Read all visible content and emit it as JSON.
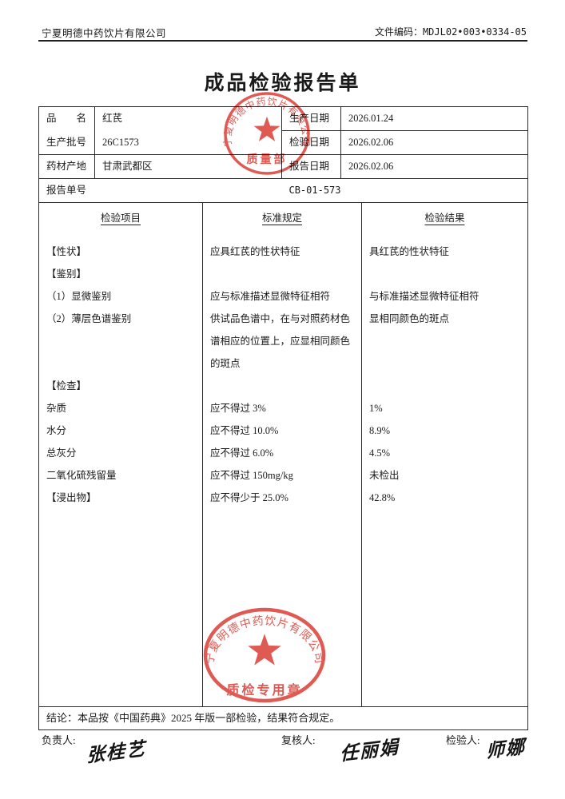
{
  "header": {
    "company": "宁夏明德中药饮片有限公司",
    "doc_code_label": "文件编码：",
    "doc_code_value": "MDJL02•003•0334-05",
    "title": "成品检验报告单"
  },
  "info": {
    "name_label": "品　　名",
    "name_value": "红芪",
    "batch_label": "生产批号",
    "batch_value": "26C1573",
    "origin_label": "药材产地",
    "origin_value": "甘肃武都区",
    "prod_date_label": "生产日期",
    "prod_date_value": "2026.01.24",
    "test_date_label": "检验日期",
    "test_date_value": "2026.02.06",
    "report_date_label": "报告日期",
    "report_date_value": "2026.02.06",
    "report_no_label": "报告单号",
    "report_no_value": "CB-01-573"
  },
  "inspection": {
    "headers": [
      "检验项目",
      "标准规定",
      "检验结果"
    ],
    "rows": [
      {
        "item": "【性状】",
        "standard": "应具红芪的性状特征",
        "result": "具红芪的性状特征",
        "lines": 1
      },
      {
        "item": "【鉴别】",
        "standard": "",
        "result": "",
        "lines": 1
      },
      {
        "item": "（1）显微鉴别",
        "standard": "应与标准描述显微特征相符",
        "result": "与标准描述显微特征相符",
        "lines": 1
      },
      {
        "item": "（2）薄层色谱鉴别",
        "standard": "供试品色谱中，在与对照药材色谱相应的位置上，应显相同颜色的斑点",
        "result": "显相同颜色的斑点",
        "lines": 3
      },
      {
        "item": "【检查】",
        "standard": "",
        "result": "",
        "lines": 1
      },
      {
        "item": "杂质",
        "standard": "应不得过 3%",
        "result": "1%",
        "lines": 1
      },
      {
        "item": "水分",
        "standard": "应不得过 10.0%",
        "result": "8.9%",
        "lines": 1
      },
      {
        "item": "总灰分",
        "standard": "应不得过 6.0%",
        "result": "4.5%",
        "lines": 1
      },
      {
        "item": "二氧化硫残留量",
        "standard": "应不得过 150mg/kg",
        "result": "未检出",
        "lines": 1
      },
      {
        "item": "【浸出物】",
        "standard": "应不得少于 25.0%",
        "result": "42.8%",
        "lines": 1
      }
    ]
  },
  "conclusion": "结论：本品按《中国药典》2025 年版一部检验，结果符合规定。",
  "signatures": {
    "resp_label": "负责人:",
    "resp_name": "张桂艺",
    "review_label": "复核人:",
    "review_name": "任丽娟",
    "inspector_label": "检验人:",
    "inspector_name": "师娜"
  },
  "stamps": {
    "company_text": "宁夏明德中药饮片有限公司",
    "top_caption": "质量部",
    "bottom_caption": "质检专用章",
    "color": "#d8352b"
  }
}
